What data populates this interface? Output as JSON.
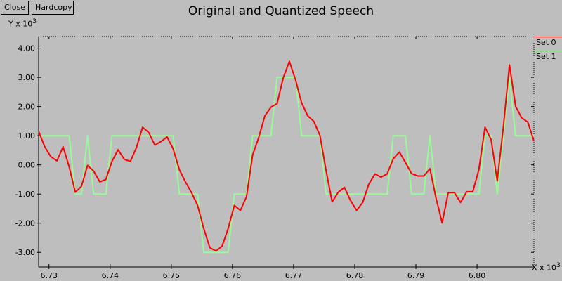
{
  "toolbar": {
    "close_label": "Close",
    "hardcopy_label": "Hardcopy"
  },
  "chart_data": {
    "type": "line",
    "title": "Original and Quantized Speech",
    "ylabel": "Y x 10",
    "xlabel": "X x 10",
    "y_exponent": "3",
    "x_exponent": "3",
    "xlim": [
      6.7283,
      6.8093
    ],
    "ylim": [
      -3.5,
      4.4
    ],
    "x_ticks": [
      {
        "v": 6.73,
        "label": "6.73"
      },
      {
        "v": 6.74,
        "label": "6.74"
      },
      {
        "v": 6.75,
        "label": "6.75"
      },
      {
        "v": 6.76,
        "label": "6.76"
      },
      {
        "v": 6.77,
        "label": "6.77"
      },
      {
        "v": 6.78,
        "label": "6.78"
      },
      {
        "v": 6.79,
        "label": "6.79"
      },
      {
        "v": 6.8,
        "label": "6.80"
      }
    ],
    "y_ticks": [
      {
        "v": 4,
        "label": "4.00"
      },
      {
        "v": 3,
        "label": "3.00"
      },
      {
        "v": 2,
        "label": "2.00"
      },
      {
        "v": 1,
        "label": "1.00"
      },
      {
        "v": 0,
        "label": "0.00"
      },
      {
        "v": -1,
        "label": "-1.00"
      },
      {
        "v": -2,
        "label": "-2.00"
      },
      {
        "v": -3,
        "label": "-3.00"
      }
    ],
    "legend_position": "right",
    "series": [
      {
        "name": "Set 0",
        "color": "#ff0000",
        "x0": 6.7283,
        "dx": 0.001,
        "values": [
          1.15,
          0.62,
          0.28,
          0.14,
          0.62,
          -0.07,
          -0.94,
          -0.74,
          -0.02,
          -0.21,
          -0.58,
          -0.5,
          0.12,
          0.52,
          0.19,
          0.12,
          0.6,
          1.29,
          1.11,
          0.68,
          0.8,
          0.96,
          0.55,
          -0.16,
          -0.58,
          -0.95,
          -1.39,
          -2.18,
          -2.84,
          -2.95,
          -2.79,
          -2.18,
          -1.39,
          -1.56,
          -1.09,
          0.34,
          0.94,
          1.68,
          1.98,
          2.1,
          2.98,
          3.55,
          2.92,
          2.13,
          1.68,
          1.49,
          1.01,
          -0.19,
          -1.27,
          -0.94,
          -0.77,
          -1.22,
          -1.56,
          -1.29,
          -0.66,
          -0.31,
          -0.42,
          -0.31,
          0.21,
          0.44,
          0.08,
          -0.3,
          -0.38,
          -0.38,
          -0.13,
          -1.14,
          -1.99,
          -0.95,
          -0.95,
          -1.29,
          -0.92,
          -0.92,
          -0.16,
          1.29,
          0.87,
          -0.55,
          1.29,
          3.43,
          2.01,
          1.61,
          1.47,
          0.82
        ]
      },
      {
        "name": "Set 1",
        "color": "#98fb98",
        "x0": 6.7283,
        "dx": 0.001,
        "values": [
          1,
          1,
          1,
          1,
          1,
          1,
          -1,
          -1,
          1,
          -1,
          -1,
          -1,
          1,
          1,
          1,
          1,
          1,
          1,
          1,
          1,
          1,
          1,
          1,
          -1,
          -1,
          -1,
          -1,
          -3,
          -3,
          -3,
          -3,
          -3,
          -1,
          -1,
          -1,
          1,
          1,
          1,
          1,
          3,
          3,
          3,
          3,
          1,
          1,
          1,
          1,
          -1,
          -1,
          -1,
          -1,
          -1,
          -1,
          -1,
          -1,
          -1,
          -1,
          -1,
          1,
          1,
          1,
          -1,
          -1,
          -1,
          1,
          -1,
          -1,
          -1,
          -1,
          -1,
          -1,
          -1,
          -1,
          1,
          1,
          -1,
          1,
          3,
          1,
          1,
          1,
          1
        ]
      }
    ]
  }
}
